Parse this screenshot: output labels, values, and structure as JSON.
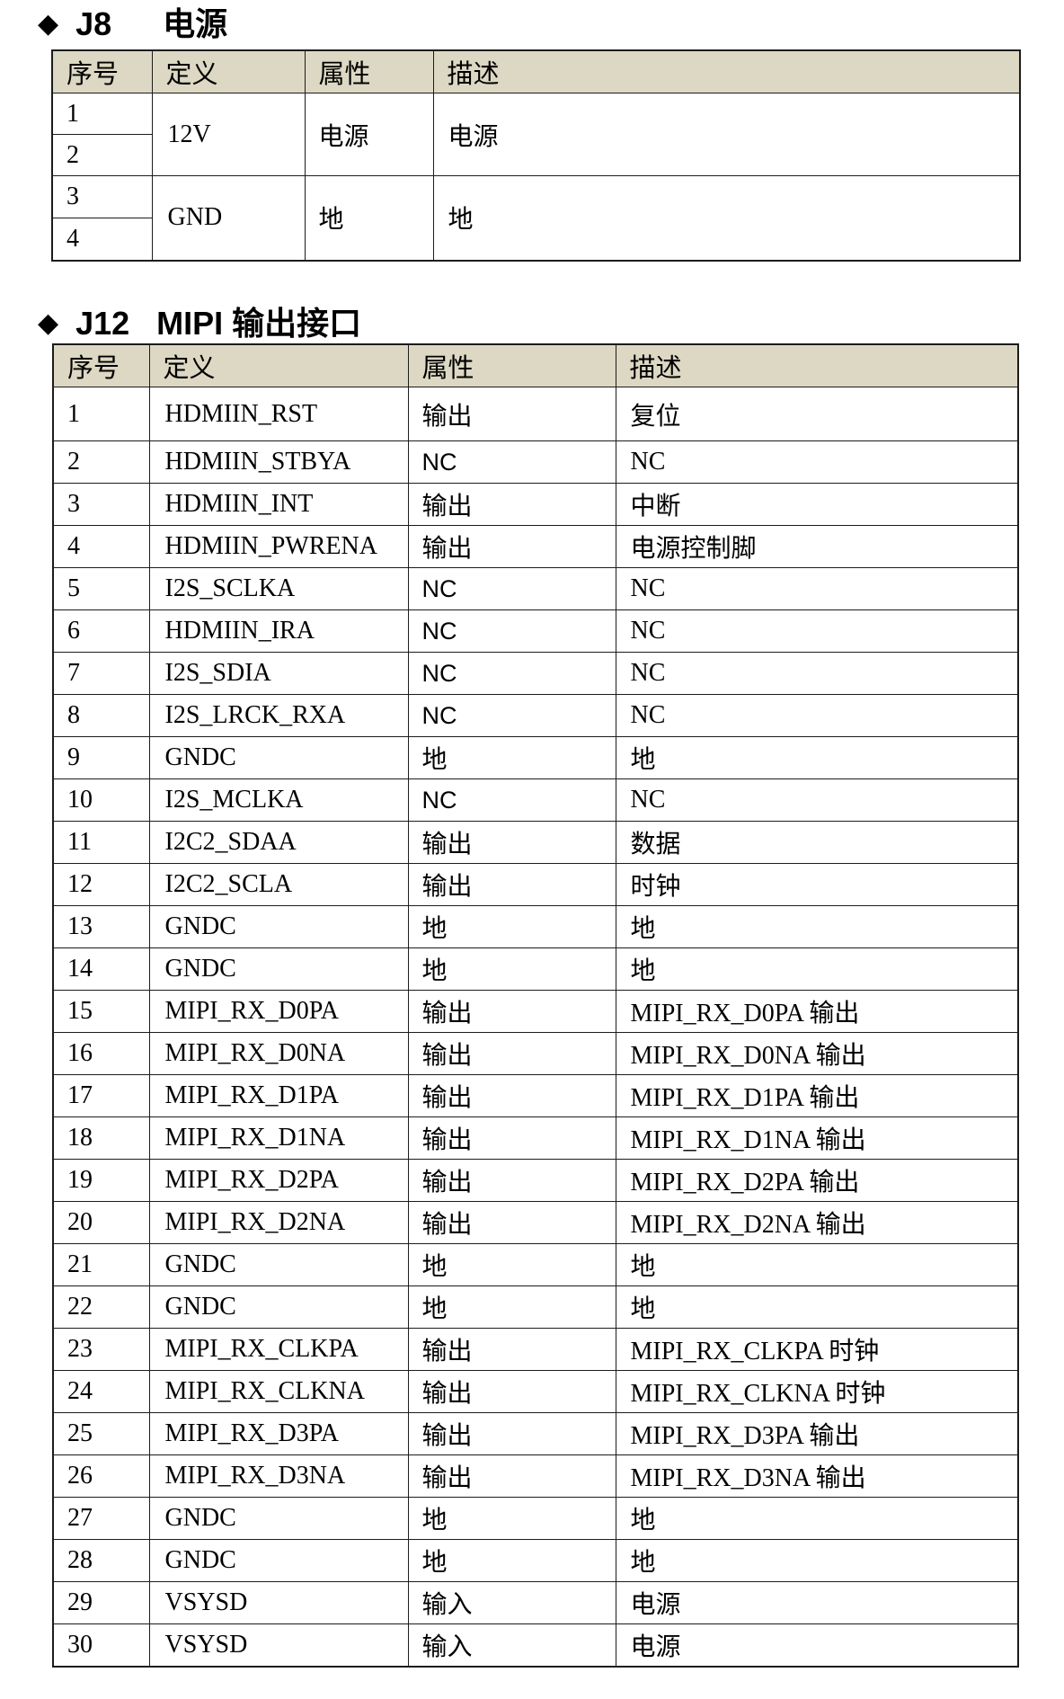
{
  "page": {
    "background": "#ffffff",
    "header_bg": "#dcd8c3",
    "border_color": "#1c1c1c"
  },
  "sections": [
    {
      "bullet": "◆",
      "code": "J8",
      "title": "电源",
      "table": {
        "headers": [
          "序号",
          "定义",
          "属性",
          "描述"
        ],
        "groups": [
          {
            "nums": [
              "1",
              "2"
            ],
            "def": "12V",
            "attr": "电源",
            "desc": "电源"
          },
          {
            "nums": [
              "3",
              "4"
            ],
            "def": "GND",
            "attr": "地",
            "desc": "地"
          }
        ]
      }
    },
    {
      "bullet": "◆",
      "code": "J12",
      "title": "MIPI 输出接口",
      "table": {
        "headers": [
          "序号",
          "定义",
          "属性",
          "描述"
        ],
        "rows": [
          {
            "num": "1",
            "def": "HDMIIN_RST",
            "attr": "输出",
            "desc": "复位"
          },
          {
            "num": "2",
            "def": "HDMIIN_STBYA",
            "attr": "NC",
            "attr_sans": true,
            "desc": "NC"
          },
          {
            "num": "3",
            "def": "HDMIIN_INT",
            "attr": "输出",
            "desc": "中断"
          },
          {
            "num": "4",
            "def": "HDMIIN_PWRENA",
            "attr": "输出",
            "desc": "电源控制脚"
          },
          {
            "num": "5",
            "def": "I2S_SCLKA",
            "attr": "NC",
            "attr_sans": true,
            "desc": "NC"
          },
          {
            "num": "6",
            "def": "HDMIIN_IRA",
            "attr": "NC",
            "attr_sans": true,
            "desc": "NC"
          },
          {
            "num": "7",
            "def": "I2S_SDIA",
            "attr": "NC",
            "attr_sans": true,
            "desc": "NC"
          },
          {
            "num": "8",
            "def": "I2S_LRCK_RXA",
            "attr": "NC",
            "attr_sans": true,
            "desc": "NC"
          },
          {
            "num": "9",
            "def": "GNDC",
            "attr": "地",
            "desc": "地"
          },
          {
            "num": "10",
            "def": "I2S_MCLKA",
            "attr": "NC",
            "attr_sans": true,
            "desc": "NC"
          },
          {
            "num": "11",
            "def": "I2C2_SDAA",
            "attr": "输出",
            "desc": "数据"
          },
          {
            "num": "12",
            "def": "I2C2_SCLA",
            "attr": "输出",
            "desc": "时钟"
          },
          {
            "num": "13",
            "def": "GNDC",
            "attr": "地",
            "desc": "地"
          },
          {
            "num": "14",
            "def": "GNDC",
            "attr": "地",
            "desc": "地"
          },
          {
            "num": "15",
            "def": "MIPI_RX_D0PA",
            "attr": "输出",
            "desc": "MIPI_RX_D0PA 输出"
          },
          {
            "num": "16",
            "def": "MIPI_RX_D0NA",
            "attr": "输出",
            "desc": "MIPI_RX_D0NA 输出"
          },
          {
            "num": "17",
            "def": "MIPI_RX_D1PA",
            "attr": "输出",
            "desc": "MIPI_RX_D1PA 输出"
          },
          {
            "num": "18",
            "def": "MIPI_RX_D1NA",
            "attr": "输出",
            "desc": "MIPI_RX_D1NA 输出"
          },
          {
            "num": "19",
            "def": "MIPI_RX_D2PA",
            "attr": "输出",
            "desc": "MIPI_RX_D2PA 输出"
          },
          {
            "num": "20",
            "def": "MIPI_RX_D2NA",
            "attr": "输出",
            "desc": "MIPI_RX_D2NA 输出"
          },
          {
            "num": "21",
            "def": "GNDC",
            "attr": "地",
            "desc": "地"
          },
          {
            "num": "22",
            "def": "GNDC",
            "attr": "地",
            "desc": "地"
          },
          {
            "num": "23",
            "def": "MIPI_RX_CLKPA",
            "attr": "输出",
            "desc": "MIPI_RX_CLKPA 时钟"
          },
          {
            "num": "24",
            "def": "MIPI_RX_CLKNA",
            "attr": "输出",
            "desc": "MIPI_RX_CLKNA 时钟"
          },
          {
            "num": "25",
            "def": "MIPI_RX_D3PA",
            "attr": "输出",
            "desc": "MIPI_RX_D3PA 输出"
          },
          {
            "num": "26",
            "def": "MIPI_RX_D3NA",
            "attr": "输出",
            "desc": "MIPI_RX_D3NA 输出"
          },
          {
            "num": "27",
            "def": "GNDC",
            "attr": "地",
            "desc": "地"
          },
          {
            "num": "28",
            "def": "GNDC",
            "attr": "地",
            "desc": "地"
          },
          {
            "num": "29",
            "def": "VSYSD",
            "attr": "输入",
            "desc": "电源"
          },
          {
            "num": "30",
            "def": "VSYSD",
            "attr": "输入",
            "desc": "电源"
          }
        ]
      }
    }
  ]
}
